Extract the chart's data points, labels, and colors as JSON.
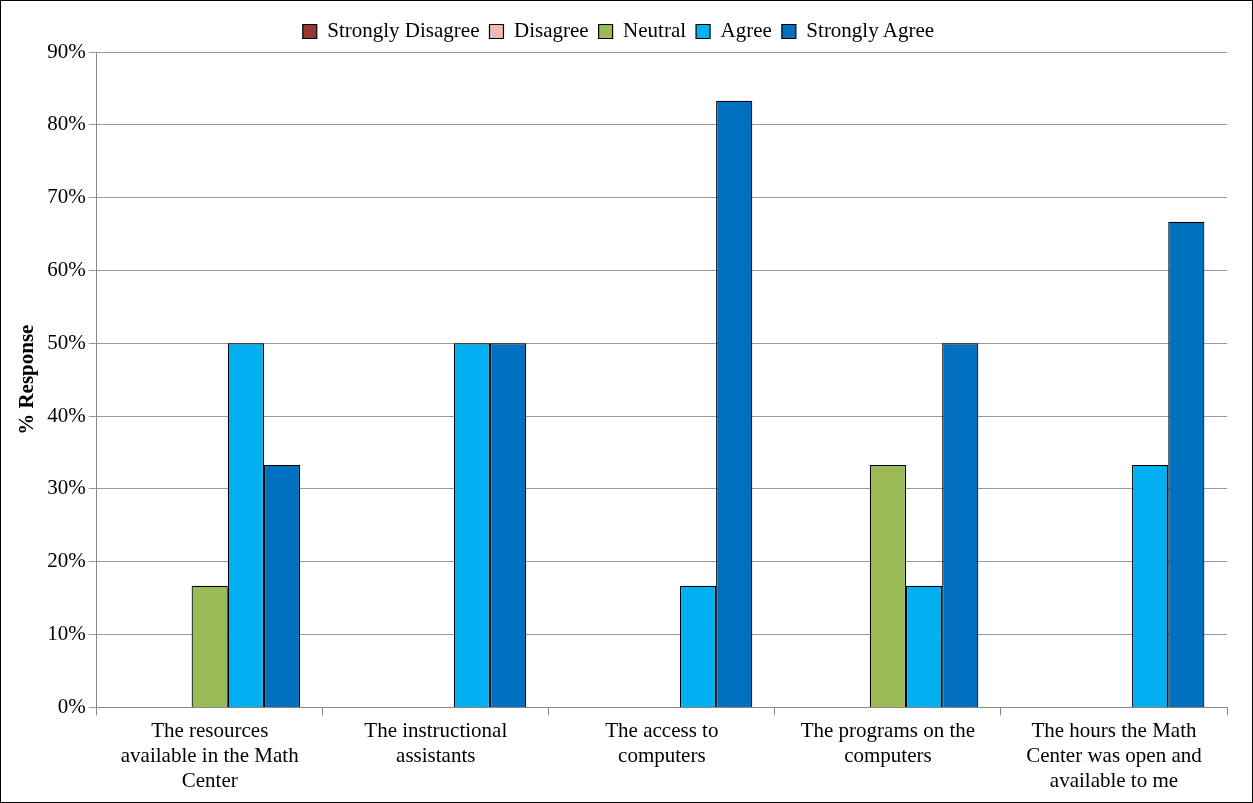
{
  "chart_data": {
    "type": "bar",
    "ylabel": "% Response",
    "categories": [
      "The resources available in the Math Center",
      "The instructional assistants",
      "The access to computers",
      "The programs on the computers",
      "The hours the Math Center was open and available to me"
    ],
    "series": [
      {
        "name": "Strongly Disagree",
        "color": "#953735",
        "values": [
          0,
          0,
          0,
          0,
          0
        ]
      },
      {
        "name": "Disagree",
        "color": "#f2b8b8",
        "values": [
          0,
          0,
          0,
          0,
          0
        ]
      },
      {
        "name": "Neutral",
        "color": "#9bbb59",
        "values": [
          16.7,
          0,
          0,
          33.3,
          0
        ]
      },
      {
        "name": "Agree",
        "color": "#00b0f0",
        "values": [
          50,
          50,
          16.7,
          16.7,
          33.3
        ]
      },
      {
        "name": "Strongly Agree",
        "color": "#0070c0",
        "values": [
          33.3,
          50,
          83.3,
          50,
          66.7
        ]
      }
    ],
    "ylim": [
      0,
      90
    ],
    "yticks": [
      {
        "value": 0,
        "label": "0%"
      },
      {
        "value": 10,
        "label": "10%"
      },
      {
        "value": 20,
        "label": "20%"
      },
      {
        "value": 30,
        "label": "30%"
      },
      {
        "value": 40,
        "label": "40%"
      },
      {
        "value": 50,
        "label": "50%"
      },
      {
        "value": 60,
        "label": "60%"
      },
      {
        "value": 70,
        "label": "70%"
      },
      {
        "value": 80,
        "label": "80%"
      },
      {
        "value": 90,
        "label": "90%"
      }
    ],
    "grid": "y",
    "legend": "top"
  }
}
